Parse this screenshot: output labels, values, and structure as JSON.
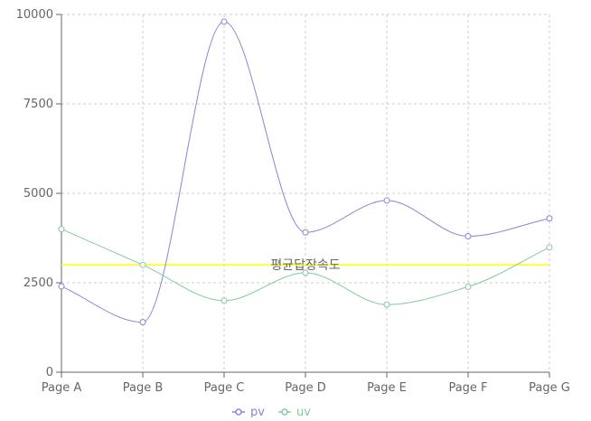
{
  "chart_data": {
    "type": "line",
    "categories": [
      "Page A",
      "Page B",
      "Page C",
      "Page D",
      "Page E",
      "Page F",
      "Page G"
    ],
    "series": [
      {
        "name": "pv",
        "values": [
          2400,
          1398,
          9800,
          3908,
          4800,
          3800,
          4300
        ],
        "color": "#8884d8"
      },
      {
        "name": "uv",
        "values": [
          4000,
          3000,
          2000,
          2780,
          1890,
          2390,
          3490
        ],
        "color": "#82ca9d"
      }
    ],
    "ylim": [
      0,
      10000
    ],
    "yticks": [
      "0",
      "2500",
      "5000",
      "7500",
      "10000"
    ],
    "reference_line": {
      "y": 3000,
      "label": "평균답장속도",
      "color": "#ffff00"
    },
    "grid": true,
    "legend_position": "bottom-center",
    "title": "",
    "xlabel": "",
    "ylabel": ""
  }
}
